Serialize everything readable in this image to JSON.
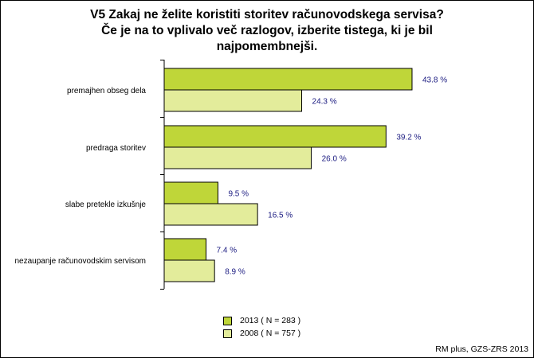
{
  "chart_data": {
    "type": "bar",
    "orientation": "horizontal",
    "title_lines": [
      "V5 Zakaj ne želite koristiti storitev računovodskega servisa?",
      "Če je na to vplivalo več razlogov, izberite tistega, ki je bil",
      "najpomembnejši."
    ],
    "categories": [
      "premajhen obseg dela",
      "predraga storitev",
      "slabe pretekle izkušnje",
      "nezaupanje računovodskim servisom"
    ],
    "series": [
      {
        "name": "2013 ( N = 283 )",
        "color": "#bfd639",
        "values": [
          43.8,
          39.2,
          9.5,
          7.4
        ],
        "labels": [
          "43.8 %",
          "39.2 %",
          "9.5 %",
          "7.4 %"
        ]
      },
      {
        "name": "2008 ( N = 757 )",
        "color": "#e3ec9b",
        "values": [
          24.3,
          26.0,
          16.5,
          8.9
        ],
        "labels": [
          "24.3 %",
          "26.0 %",
          "16.5 %",
          "8.9 %"
        ]
      }
    ],
    "xlim": [
      0,
      100
    ],
    "grid": false,
    "legend_position": "bottom",
    "label_color": "#1a1a80"
  },
  "footer": {
    "source": "RM plus, GZS-ZRS 2013"
  }
}
